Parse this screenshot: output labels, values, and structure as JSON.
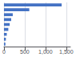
{
  "chart_data": {
    "type": "bar",
    "orientation": "horizontal",
    "categories": [
      null,
      null,
      null,
      null,
      null,
      null,
      null,
      null,
      null
    ],
    "values": [
      1389,
      610,
      212,
      175,
      138,
      105,
      68,
      46,
      35
    ],
    "color": "#4472c4",
    "xlim": [
      0,
      1600
    ],
    "xticks": [
      0,
      500,
      {
        "value": 1000,
        "label": "1,000"
      },
      {
        "value": 1500,
        "label": "1,500"
      }
    ],
    "grid": true,
    "tick_labels": "x"
  }
}
